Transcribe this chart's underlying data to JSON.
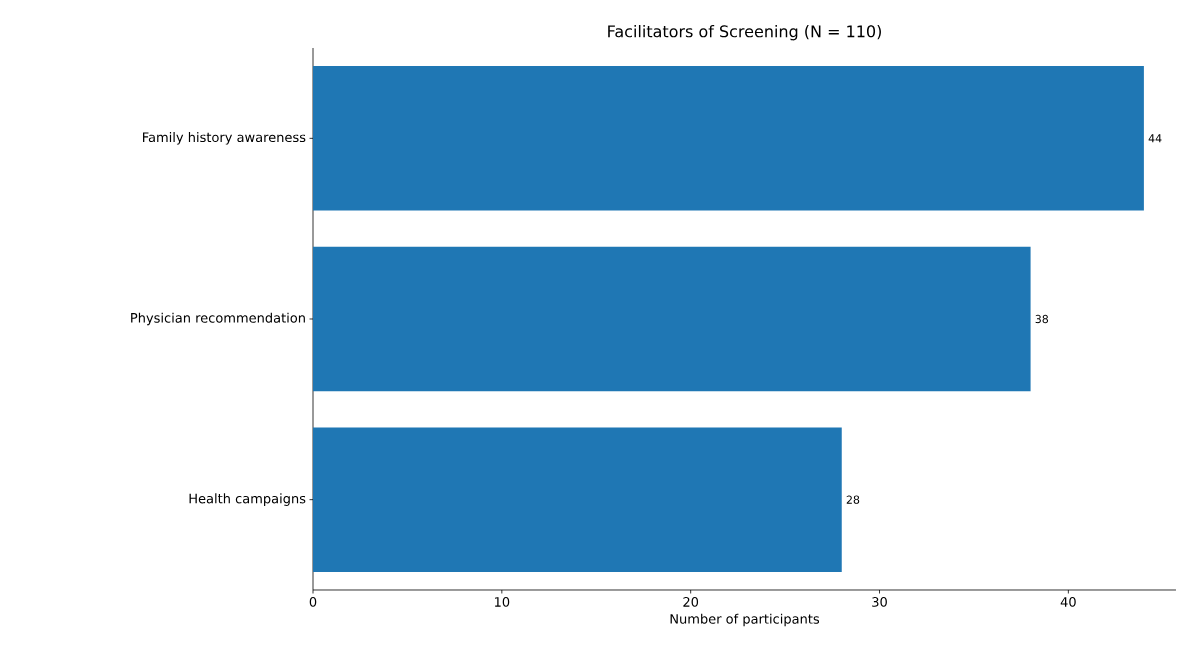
{
  "chart_data": {
    "type": "bar",
    "orientation": "horizontal",
    "title": "Facilitators of Screening (N = 110)",
    "xlabel": "Number of participants",
    "categories": [
      "Family history awareness",
      "Physician recommendation",
      "Health campaigns"
    ],
    "values": [
      44,
      38,
      28
    ],
    "color": "#1f77b4",
    "data_labels": true,
    "xlim": [
      0,
      45.7
    ],
    "xticks": [
      0,
      10,
      20,
      30,
      40
    ]
  }
}
